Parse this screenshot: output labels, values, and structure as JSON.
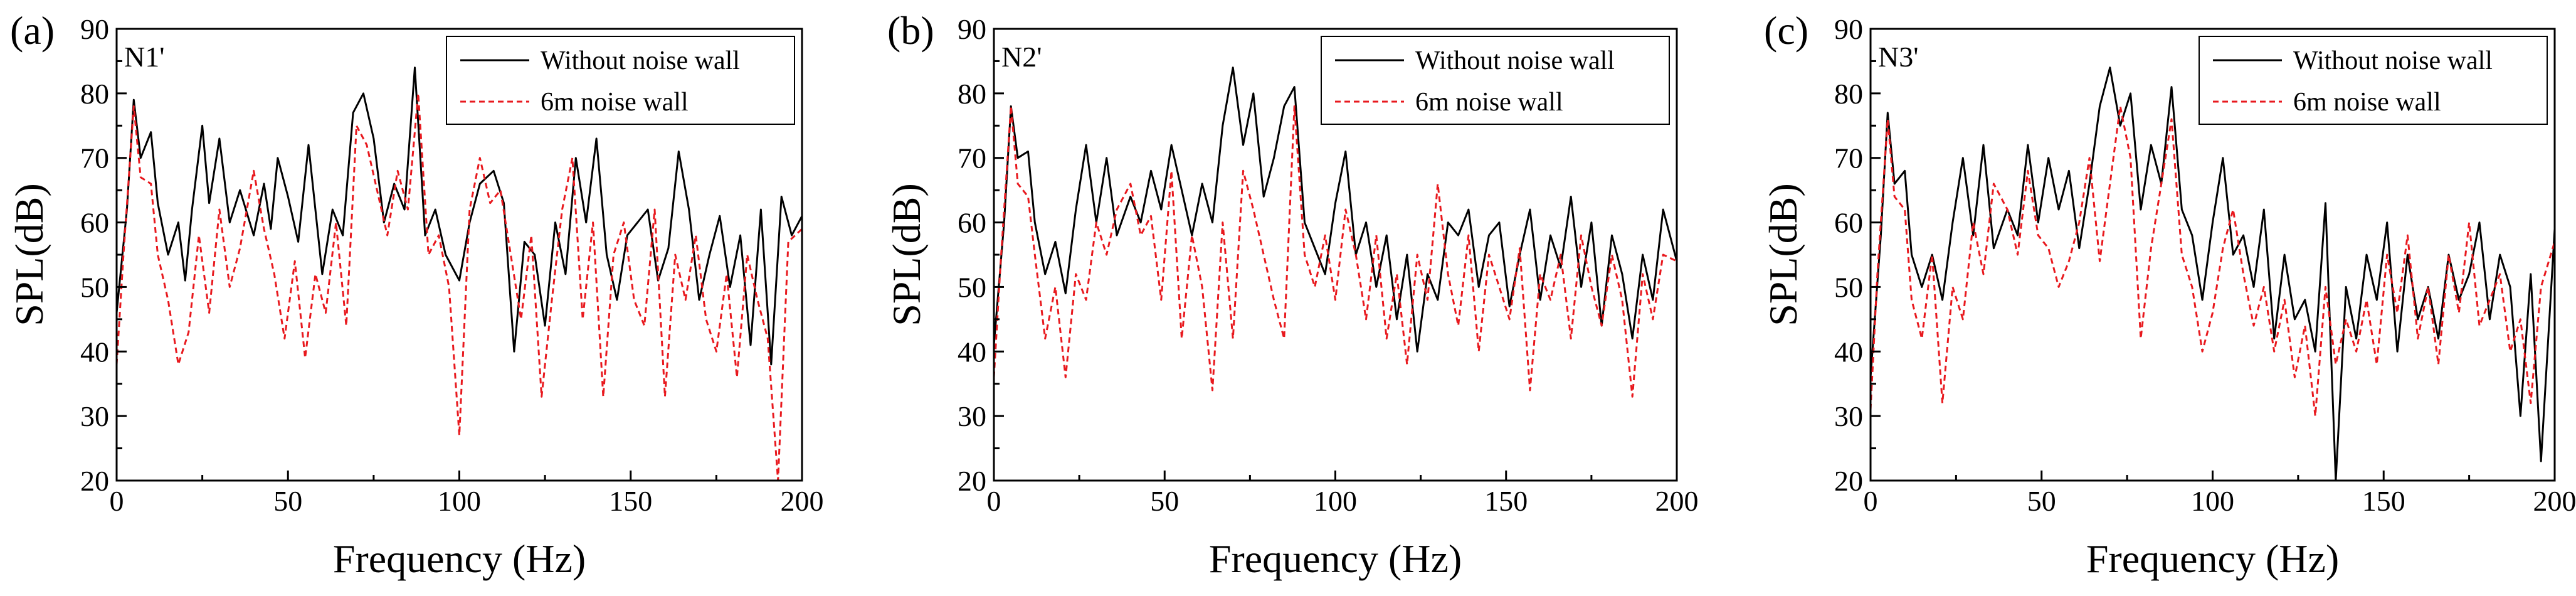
{
  "chart_data": [
    {
      "type": "line",
      "panel_label": "(a)",
      "annotation": "N1'",
      "xlabel": "Frequency (Hz)",
      "ylabel": "SPL(dB)",
      "xlim": [
        0,
        200
      ],
      "ylim": [
        20,
        90
      ],
      "xticks": [
        0,
        50,
        100,
        150,
        200
      ],
      "yticks": [
        20,
        30,
        40,
        50,
        60,
        70,
        80,
        90
      ],
      "legend_position": "top-right",
      "series": [
        {
          "name": "Without noise wall",
          "color": "#000000",
          "style": "solid",
          "x": [
            0,
            3,
            5,
            7,
            10,
            12,
            15,
            18,
            20,
            22,
            25,
            27,
            30,
            33,
            36,
            40,
            43,
            45,
            47,
            50,
            53,
            56,
            60,
            63,
            66,
            69,
            72,
            75,
            78,
            81,
            84,
            87,
            90,
            93,
            96,
            100,
            103,
            106,
            110,
            113,
            116,
            119,
            122,
            125,
            128,
            131,
            134,
            137,
            140,
            143,
            146,
            149,
            152,
            155,
            158,
            161,
            164,
            167,
            170,
            173,
            176,
            179,
            182,
            185,
            188,
            191,
            194,
            197,
            200
          ],
          "values": [
            46,
            62,
            79,
            70,
            74,
            63,
            55,
            60,
            51,
            62,
            75,
            63,
            73,
            60,
            65,
            58,
            66,
            59,
            70,
            64,
            57,
            72,
            52,
            62,
            58,
            77,
            80,
            73,
            60,
            66,
            62,
            84,
            58,
            62,
            55,
            51,
            60,
            66,
            68,
            63,
            40,
            57,
            55,
            44,
            60,
            52,
            70,
            60,
            73,
            55,
            48,
            58,
            60,
            62,
            51,
            56,
            71,
            62,
            48,
            55,
            61,
            50,
            58,
            41,
            62,
            38,
            64,
            58,
            61
          ]
        },
        {
          "name": "6m noise wall",
          "color": "#e8191e",
          "style": "dashed",
          "x": [
            0,
            2,
            5,
            7,
            10,
            12,
            15,
            18,
            21,
            24,
            27,
            30,
            33,
            36,
            40,
            43,
            46,
            49,
            52,
            55,
            58,
            61,
            64,
            67,
            70,
            73,
            76,
            79,
            82,
            85,
            88,
            91,
            94,
            97,
            100,
            103,
            106,
            109,
            112,
            115,
            118,
            121,
            124,
            127,
            130,
            133,
            136,
            139,
            142,
            145,
            148,
            151,
            154,
            157,
            160,
            163,
            166,
            169,
            172,
            175,
            178,
            181,
            184,
            187,
            190,
            193,
            196,
            200
          ],
          "values": [
            38,
            55,
            78,
            67,
            66,
            55,
            48,
            38,
            43,
            58,
            46,
            62,
            50,
            56,
            68,
            59,
            52,
            42,
            54,
            39,
            52,
            46,
            60,
            44,
            75,
            72,
            65,
            58,
            68,
            62,
            80,
            55,
            58,
            50,
            27,
            62,
            70,
            63,
            65,
            55,
            45,
            58,
            33,
            48,
            62,
            70,
            45,
            60,
            33,
            55,
            60,
            48,
            44,
            62,
            33,
            55,
            48,
            58,
            45,
            40,
            52,
            36,
            55,
            48,
            42,
            20,
            57,
            59
          ]
        }
      ]
    },
    {
      "type": "line",
      "panel_label": "(b)",
      "annotation": "N2'",
      "xlabel": "Frequency (Hz)",
      "ylabel": "SPL(dB)",
      "xlim": [
        0,
        200
      ],
      "ylim": [
        20,
        90
      ],
      "xticks": [
        0,
        50,
        100,
        150,
        200
      ],
      "yticks": [
        20,
        30,
        40,
        50,
        60,
        70,
        80,
        90
      ],
      "legend_position": "top-right",
      "series": [
        {
          "name": "Without noise wall",
          "color": "#000000",
          "style": "solid",
          "x": [
            0,
            3,
            5,
            7,
            10,
            12,
            15,
            18,
            21,
            24,
            27,
            30,
            33,
            36,
            40,
            43,
            46,
            49,
            52,
            55,
            58,
            61,
            64,
            67,
            70,
            73,
            76,
            79,
            82,
            85,
            88,
            91,
            94,
            97,
            100,
            103,
            106,
            109,
            112,
            115,
            118,
            121,
            124,
            127,
            130,
            133,
            136,
            139,
            142,
            145,
            148,
            151,
            154,
            157,
            160,
            163,
            166,
            169,
            172,
            175,
            178,
            181,
            184,
            187,
            190,
            193,
            196,
            200
          ],
          "values": [
            41,
            60,
            78,
            70,
            71,
            60,
            52,
            57,
            49,
            62,
            72,
            60,
            70,
            58,
            64,
            60,
            68,
            62,
            72,
            65,
            58,
            66,
            60,
            75,
            84,
            72,
            80,
            64,
            70,
            78,
            81,
            60,
            56,
            52,
            63,
            71,
            55,
            60,
            50,
            58,
            45,
            55,
            40,
            52,
            48,
            60,
            58,
            62,
            50,
            58,
            60,
            47,
            55,
            62,
            48,
            58,
            53,
            64,
            50,
            60,
            44,
            58,
            52,
            42,
            55,
            48,
            62,
            54
          ]
        },
        {
          "name": "6m noise wall",
          "color": "#e8191e",
          "style": "dashed",
          "x": [
            0,
            2,
            5,
            7,
            10,
            12,
            15,
            18,
            21,
            24,
            27,
            30,
            33,
            36,
            40,
            43,
            46,
            49,
            52,
            55,
            58,
            61,
            64,
            67,
            70,
            73,
            76,
            79,
            82,
            85,
            88,
            91,
            94,
            97,
            100,
            103,
            106,
            109,
            112,
            115,
            118,
            121,
            124,
            127,
            130,
            133,
            136,
            139,
            142,
            145,
            148,
            151,
            154,
            157,
            160,
            163,
            166,
            169,
            172,
            175,
            178,
            181,
            184,
            187,
            190,
            193,
            196,
            200
          ],
          "values": [
            36,
            54,
            78,
            66,
            64,
            55,
            42,
            50,
            36,
            52,
            48,
            60,
            55,
            62,
            66,
            58,
            61,
            48,
            68,
            42,
            58,
            50,
            34,
            60,
            42,
            68,
            62,
            55,
            48,
            42,
            78,
            55,
            50,
            58,
            48,
            62,
            55,
            45,
            58,
            42,
            52,
            38,
            55,
            48,
            66,
            52,
            44,
            58,
            40,
            55,
            50,
            45,
            56,
            34,
            52,
            48,
            55,
            42,
            58,
            50,
            44,
            55,
            48,
            33,
            52,
            45,
            55,
            54
          ]
        }
      ]
    },
    {
      "type": "line",
      "panel_label": "(c)",
      "annotation": "N3'",
      "xlabel": "Frequency (Hz)",
      "ylabel": "SPL(dB)",
      "xlim": [
        0,
        200
      ],
      "ylim": [
        20,
        90
      ],
      "xticks": [
        0,
        50,
        100,
        150,
        200
      ],
      "yticks": [
        20,
        30,
        40,
        50,
        60,
        70,
        80,
        90
      ],
      "legend_position": "top-right",
      "series": [
        {
          "name": "Without noise wall",
          "color": "#000000",
          "style": "solid",
          "x": [
            0,
            3,
            5,
            7,
            10,
            12,
            15,
            18,
            21,
            24,
            27,
            30,
            33,
            36,
            40,
            43,
            46,
            49,
            52,
            55,
            58,
            61,
            64,
            67,
            70,
            73,
            76,
            79,
            82,
            85,
            88,
            91,
            94,
            97,
            100,
            103,
            106,
            109,
            112,
            115,
            118,
            121,
            124,
            127,
            130,
            133,
            136,
            139,
            142,
            145,
            148,
            151,
            154,
            157,
            160,
            163,
            166,
            169,
            172,
            175,
            178,
            181,
            184,
            187,
            190,
            193,
            196,
            200
          ],
          "values": [
            36,
            58,
            77,
            66,
            68,
            55,
            50,
            55,
            48,
            60,
            70,
            58,
            72,
            56,
            62,
            58,
            72,
            60,
            70,
            62,
            68,
            56,
            66,
            78,
            84,
            75,
            80,
            62,
            72,
            66,
            81,
            62,
            58,
            48,
            60,
            70,
            55,
            58,
            50,
            62,
            42,
            55,
            45,
            48,
            40,
            63,
            20,
            50,
            42,
            55,
            48,
            60,
            40,
            55,
            45,
            50,
            42,
            55,
            48,
            52,
            60,
            45,
            55,
            50,
            30,
            52,
            23,
            59
          ]
        },
        {
          "name": "6m noise wall",
          "color": "#e8191e",
          "style": "dashed",
          "x": [
            0,
            2,
            5,
            7,
            10,
            12,
            15,
            18,
            21,
            24,
            27,
            30,
            33,
            36,
            40,
            43,
            46,
            49,
            52,
            55,
            58,
            61,
            64,
            67,
            70,
            73,
            76,
            79,
            82,
            85,
            88,
            91,
            94,
            97,
            100,
            103,
            106,
            109,
            112,
            115,
            118,
            121,
            124,
            127,
            130,
            133,
            136,
            139,
            142,
            145,
            148,
            151,
            154,
            157,
            160,
            163,
            166,
            169,
            172,
            175,
            178,
            181,
            184,
            187,
            190,
            193,
            196,
            200
          ],
          "values": [
            31,
            52,
            76,
            64,
            62,
            48,
            42,
            55,
            32,
            50,
            45,
            60,
            52,
            66,
            62,
            55,
            68,
            58,
            56,
            50,
            54,
            60,
            70,
            54,
            66,
            78,
            70,
            42,
            56,
            66,
            76,
            55,
            50,
            40,
            46,
            56,
            62,
            52,
            44,
            50,
            40,
            48,
            36,
            44,
            30,
            50,
            38,
            45,
            40,
            48,
            38,
            55,
            46,
            58,
            42,
            50,
            38,
            55,
            46,
            60,
            44,
            48,
            52,
            40,
            45,
            32,
            50,
            57
          ]
        }
      ]
    }
  ]
}
